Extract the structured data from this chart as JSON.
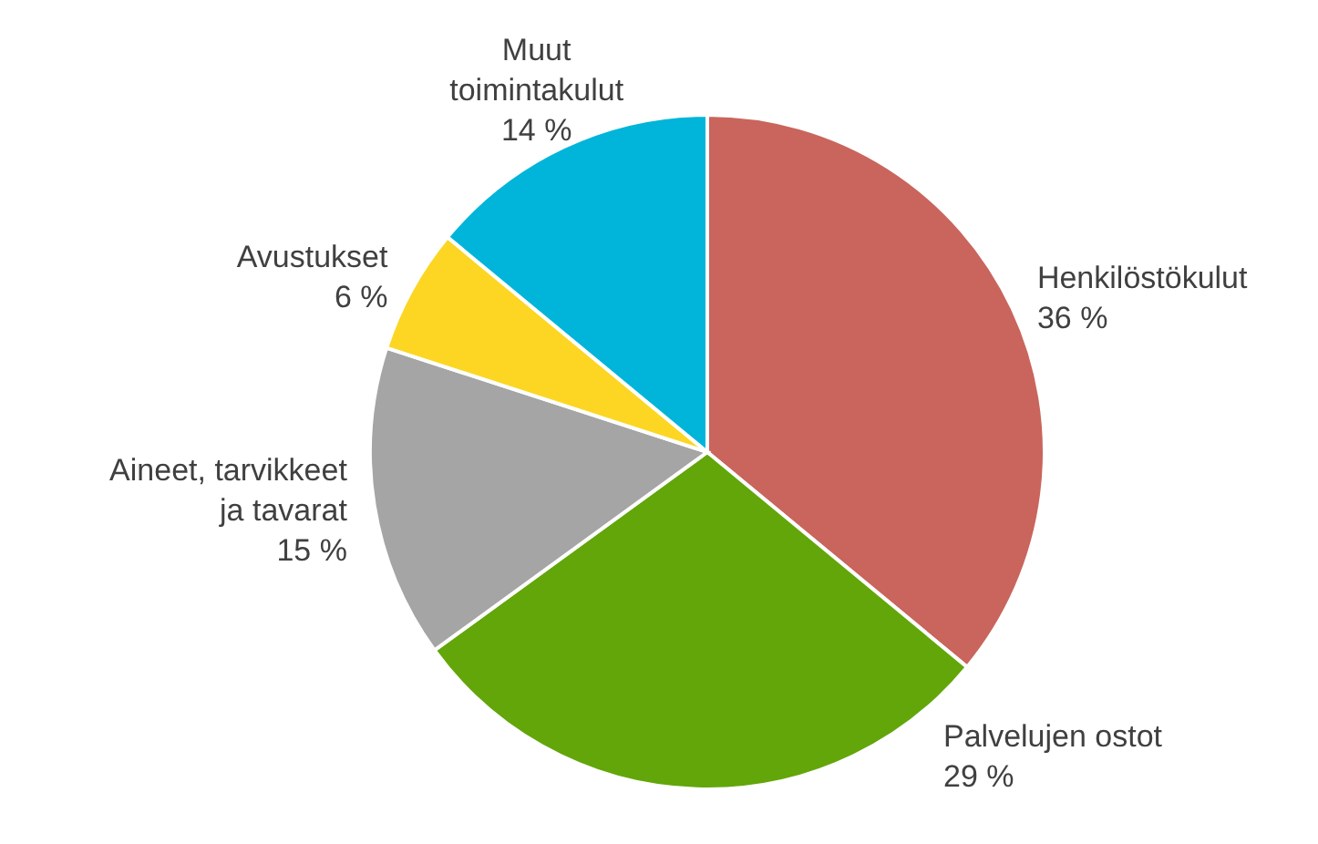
{
  "chart_data": {
    "type": "pie",
    "categories": [
      "Henkilöstökulut",
      "Palvelujen ostot",
      "Aineet, tarvikkeet\nja tavarat",
      "Avustukset",
      "Muut\ntoimintakulut"
    ],
    "values": [
      36,
      29,
      15,
      6,
      14
    ],
    "value_labels": [
      "36 %",
      "29 %",
      "15 %",
      "6 %",
      "14 %"
    ],
    "colors": [
      "#c9655c",
      "#62a60a",
      "#a5a5a5",
      "#fcd623",
      "#00b5d9"
    ],
    "legend": false
  }
}
